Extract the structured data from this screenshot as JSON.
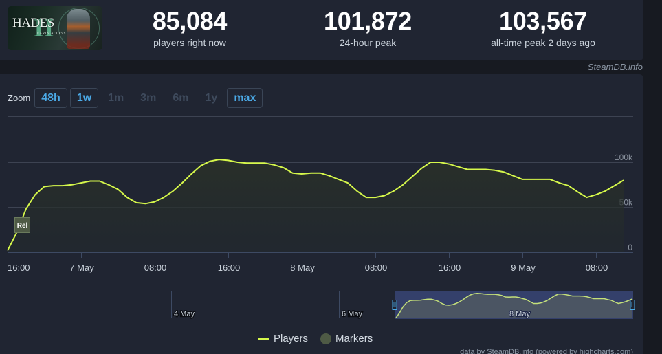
{
  "game": {
    "capsule_title": "HADES",
    "capsule_numeral": "II",
    "capsule_subtitle": "EARLY ACCESS"
  },
  "stats": [
    {
      "value": "85,084",
      "label": "players right now"
    },
    {
      "value": "101,872",
      "label": "24-hour peak"
    },
    {
      "value": "103,567",
      "label": "all-time peak 2 days ago"
    }
  ],
  "brand": "SteamDB.info",
  "zoom": {
    "label": "Zoom",
    "options": [
      {
        "label": "48h",
        "active": true
      },
      {
        "label": "1w",
        "active": true
      },
      {
        "label": "1m",
        "active": false
      },
      {
        "label": "3m",
        "active": false
      },
      {
        "label": "6m",
        "active": false
      },
      {
        "label": "1y",
        "active": false
      },
      {
        "label": "max",
        "active": true
      }
    ]
  },
  "legend": {
    "players": "Players",
    "markers": "Markers"
  },
  "marker": {
    "label": "Rel"
  },
  "navigator": {
    "labels": [
      "4 May",
      "6 May",
      "8 May"
    ]
  },
  "credit": "data by SteamDB.info (powered by highcharts.com)",
  "colors": {
    "line": "#d6f84b",
    "accent": "#4ba9e6",
    "panel": "#202532",
    "background": "#171a21"
  },
  "chart_data": {
    "type": "line",
    "title": "",
    "xlabel": "",
    "ylabel": "Players",
    "ylim": [
      0,
      150000
    ],
    "y_ticks": [
      0,
      50000,
      100000,
      150000
    ],
    "y_tick_labels": [
      "0",
      "50k",
      "100k",
      ""
    ],
    "x_tick_labels": [
      "16:00",
      "7 May",
      "08:00",
      "16:00",
      "8 May",
      "08:00",
      "16:00",
      "9 May",
      "08:00"
    ],
    "grid": true,
    "legend_position": "bottom",
    "series": [
      {
        "name": "Players",
        "color": "#d6f84b",
        "x": [
          "6 May 16:00",
          "6 May 17:00",
          "6 May 18:00",
          "6 May 19:00",
          "6 May 20:00",
          "6 May 21:00",
          "6 May 22:00",
          "6 May 23:00",
          "7 May 00:00",
          "7 May 01:00",
          "7 May 02:00",
          "7 May 03:00",
          "7 May 04:00",
          "7 May 05:00",
          "7 May 06:00",
          "7 May 07:00",
          "7 May 08:00",
          "7 May 09:00",
          "7 May 10:00",
          "7 May 11:00",
          "7 May 12:00",
          "7 May 13:00",
          "7 May 14:00",
          "7 May 15:00",
          "7 May 16:00",
          "7 May 17:00",
          "7 May 18:00",
          "7 May 19:00",
          "7 May 20:00",
          "7 May 21:00",
          "7 May 22:00",
          "7 May 23:00",
          "8 May 00:00",
          "8 May 01:00",
          "8 May 02:00",
          "8 May 03:00",
          "8 May 04:00",
          "8 May 05:00",
          "8 May 06:00",
          "8 May 07:00",
          "8 May 08:00",
          "8 May 09:00",
          "8 May 10:00",
          "8 May 11:00",
          "8 May 12:00",
          "8 May 13:00",
          "8 May 14:00",
          "8 May 15:00",
          "8 May 16:00",
          "8 May 17:00",
          "8 May 18:00",
          "8 May 19:00",
          "8 May 20:00",
          "8 May 21:00",
          "8 May 22:00",
          "8 May 23:00",
          "9 May 00:00",
          "9 May 01:00",
          "9 May 02:00",
          "9 May 03:00",
          "9 May 04:00",
          "9 May 05:00",
          "9 May 06:00",
          "9 May 07:00",
          "9 May 08:00",
          "9 May 09:00",
          "9 May 10:00",
          "9 May 11:00"
        ],
        "values": [
          2000,
          22000,
          48000,
          64000,
          73000,
          74000,
          74000,
          75000,
          77000,
          79000,
          79000,
          75000,
          70000,
          61000,
          55000,
          54000,
          56000,
          61000,
          68000,
          77000,
          87000,
          96000,
          101000,
          103000,
          102000,
          100000,
          99000,
          99000,
          99000,
          97000,
          94000,
          88000,
          87000,
          88000,
          88000,
          85000,
          81000,
          77000,
          68000,
          61000,
          61000,
          63000,
          68000,
          75000,
          84000,
          93000,
          100000,
          100000,
          98000,
          95000,
          92000,
          92000,
          92000,
          91000,
          89000,
          85000,
          81000,
          81000,
          81000,
          81000,
          77000,
          74000,
          67000,
          61000,
          64000,
          68000,
          74000,
          80000
        ]
      }
    ],
    "markers": [
      {
        "x": "6 May 17:00",
        "label": "Rel"
      }
    ]
  }
}
